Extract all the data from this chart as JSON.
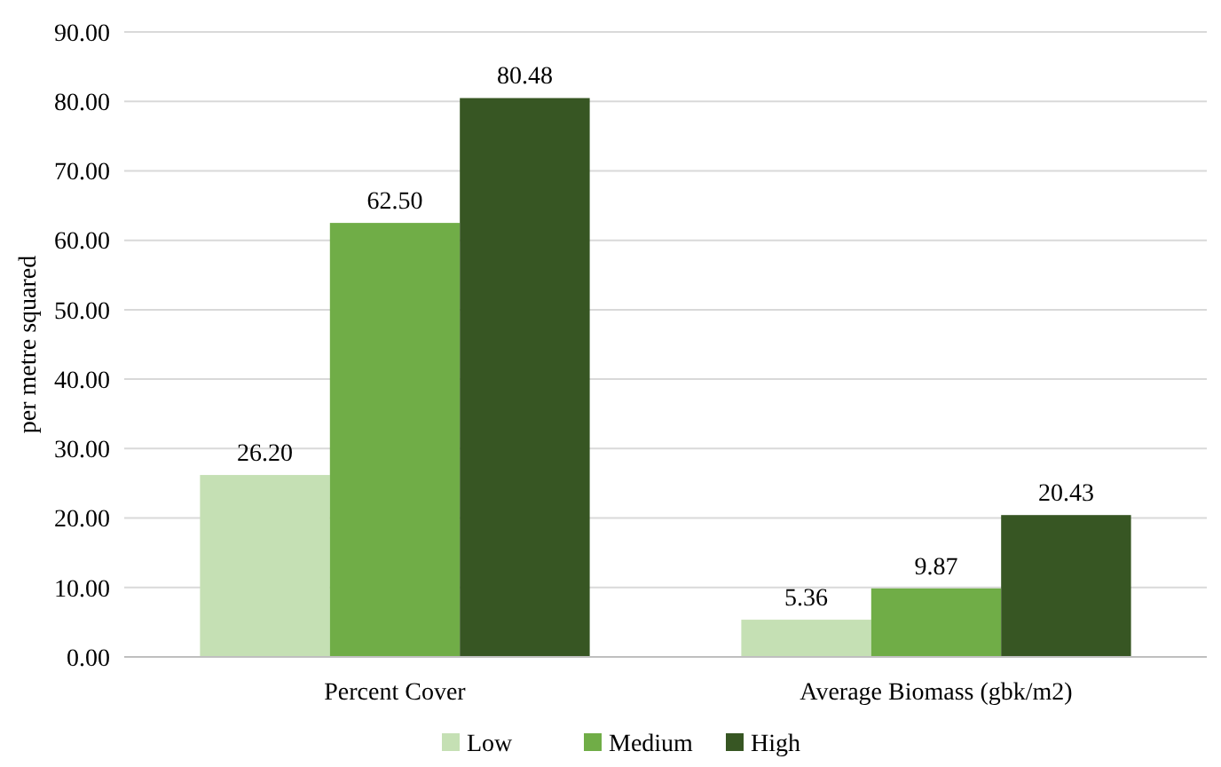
{
  "chart_data": {
    "type": "bar",
    "ylabel": "per metre squared",
    "categories": [
      "Percent Cover",
      "Average Biomass (gbk/m2)"
    ],
    "series": [
      {
        "name": "Low",
        "color": "#c5e0b4",
        "values": [
          26.2,
          5.36
        ],
        "value_labels": [
          "26.20",
          "5.36"
        ]
      },
      {
        "name": "Medium",
        "color": "#70ad47",
        "values": [
          62.5,
          9.87
        ],
        "value_labels": [
          "62.50",
          "9.87"
        ]
      },
      {
        "name": "High",
        "color": "#375623",
        "values": [
          80.48,
          20.43
        ],
        "value_labels": [
          "80.48",
          "20.43"
        ]
      }
    ],
    "ylim": [
      0,
      90
    ],
    "yticks": [
      {
        "value": 0,
        "label": "0.00"
      },
      {
        "value": 10,
        "label": "10.00"
      },
      {
        "value": 20,
        "label": "20.00"
      },
      {
        "value": 30,
        "label": "30.00"
      },
      {
        "value": 40,
        "label": "40.00"
      },
      {
        "value": 50,
        "label": "50.00"
      },
      {
        "value": 60,
        "label": "60.00"
      },
      {
        "value": 70,
        "label": "70.00"
      },
      {
        "value": 80,
        "label": "80.00"
      },
      {
        "value": 90,
        "label": "90.00"
      }
    ],
    "grid": "y",
    "legend": "bottom"
  }
}
